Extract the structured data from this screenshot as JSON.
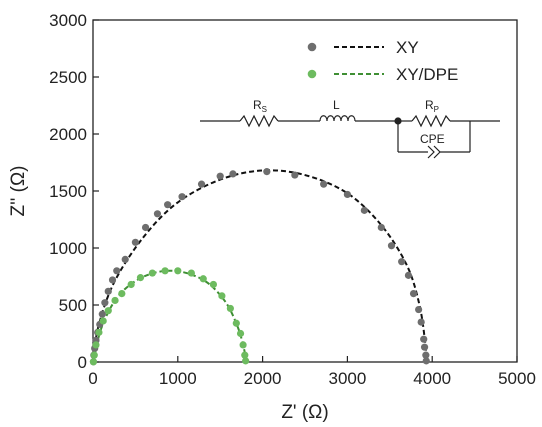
{
  "chart_data": {
    "type": "scatter",
    "xlabel": "Z' (Ω)",
    "ylabel": "Z'' (Ω)",
    "xlim": [
      0,
      5000
    ],
    "ylim": [
      0,
      3000
    ],
    "xticks": [
      0,
      1000,
      2000,
      3000,
      4000,
      5000
    ],
    "yticks": [
      0,
      500,
      1000,
      1500,
      2000,
      2500,
      3000
    ],
    "grid": false,
    "legend_position": "top-right",
    "series": [
      {
        "name": "XY",
        "marker_color": "#6e6e6e",
        "fit_color": "#111111",
        "points": [
          [
            5,
            2
          ],
          [
            10,
            60
          ],
          [
            20,
            120
          ],
          [
            35,
            190
          ],
          [
            55,
            260
          ],
          [
            80,
            330
          ],
          [
            110,
            420
          ],
          [
            140,
            520
          ],
          [
            180,
            620
          ],
          [
            230,
            720
          ],
          [
            280,
            800
          ],
          [
            380,
            900
          ],
          [
            500,
            1050
          ],
          [
            620,
            1180
          ],
          [
            760,
            1300
          ],
          [
            880,
            1380
          ],
          [
            1050,
            1450
          ],
          [
            1280,
            1560
          ],
          [
            1500,
            1630
          ],
          [
            1650,
            1650
          ],
          [
            2050,
            1670
          ],
          [
            2380,
            1640
          ],
          [
            2720,
            1560
          ],
          [
            3000,
            1470
          ],
          [
            3200,
            1330
          ],
          [
            3400,
            1180
          ],
          [
            3520,
            1020
          ],
          [
            3640,
            880
          ],
          [
            3720,
            760
          ],
          [
            3780,
            600
          ],
          [
            3840,
            460
          ],
          [
            3870,
            350
          ],
          [
            3900,
            200
          ],
          [
            3910,
            130
          ],
          [
            3925,
            60
          ],
          [
            3930,
            10
          ]
        ],
        "fit": [
          [
            5,
            0
          ],
          [
            60,
            300
          ],
          [
            250,
            700
          ],
          [
            600,
            1100
          ],
          [
            1000,
            1400
          ],
          [
            1500,
            1600
          ],
          [
            2000,
            1680
          ],
          [
            2500,
            1640
          ],
          [
            3000,
            1480
          ],
          [
            3400,
            1200
          ],
          [
            3700,
            850
          ],
          [
            3850,
            500
          ],
          [
            3920,
            150
          ],
          [
            3930,
            0
          ]
        ]
      },
      {
        "name": "XY/DPE",
        "marker_color": "#6dbb5f",
        "fit_color": "#3f8f34",
        "points": [
          [
            5,
            2
          ],
          [
            15,
            60
          ],
          [
            35,
            150
          ],
          [
            70,
            260
          ],
          [
            120,
            360
          ],
          [
            180,
            450
          ],
          [
            260,
            540
          ],
          [
            340,
            600
          ],
          [
            450,
            680
          ],
          [
            560,
            740
          ],
          [
            700,
            780
          ],
          [
            850,
            800
          ],
          [
            1000,
            800
          ],
          [
            1160,
            780
          ],
          [
            1300,
            730
          ],
          [
            1420,
            680
          ],
          [
            1520,
            580
          ],
          [
            1620,
            470
          ],
          [
            1690,
            340
          ],
          [
            1740,
            250
          ],
          [
            1770,
            150
          ],
          [
            1790,
            60
          ],
          [
            1800,
            10
          ]
        ],
        "fit": [
          [
            5,
            0
          ],
          [
            100,
            300
          ],
          [
            300,
            580
          ],
          [
            600,
            750
          ],
          [
            950,
            800
          ],
          [
            1300,
            720
          ],
          [
            1550,
            540
          ],
          [
            1700,
            320
          ],
          [
            1780,
            120
          ],
          [
            1800,
            0
          ]
        ]
      }
    ],
    "inset": {
      "type": "equivalent-circuit",
      "labels": {
        "rs": "R",
        "rs_sub": "S",
        "l": "L",
        "rp": "R",
        "rp_sub": "P",
        "cpe": "CPE"
      }
    }
  }
}
